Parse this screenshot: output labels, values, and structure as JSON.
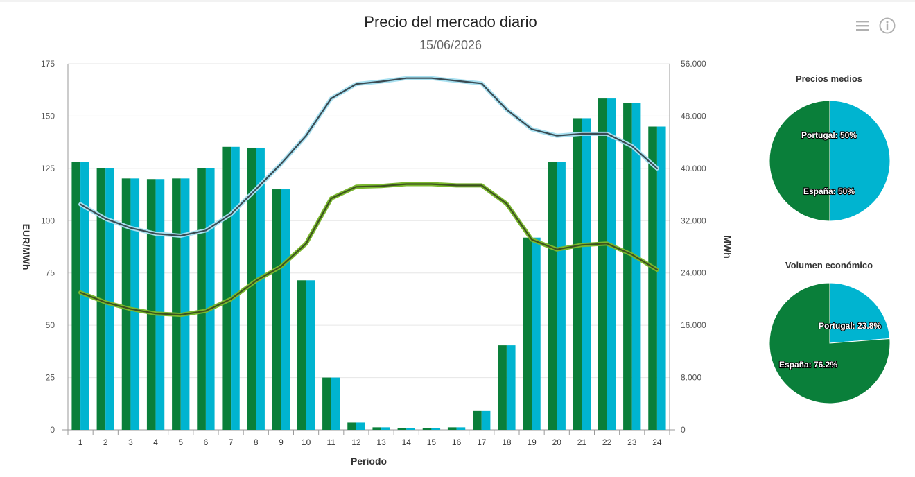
{
  "title": "Precio del mercado diario",
  "subtitle": "15/06/2026",
  "toolbar": {
    "menu_icon": "hamburger-menu-icon",
    "info_icon": "info-icon"
  },
  "colors": {
    "espana": "#0a7f3a",
    "portugal": "#00b4d0",
    "line_light": "#a8e0f0",
    "line_dark": "#3a4a52",
    "line_green": "#7ab82e",
    "line_green_dark": "#3d5220",
    "grid": "#e6e6e6"
  },
  "chart_data": [
    {
      "type": "bar",
      "categories": [
        "1",
        "2",
        "3",
        "4",
        "5",
        "6",
        "7",
        "8",
        "9",
        "10",
        "11",
        "12",
        "13",
        "14",
        "15",
        "16",
        "17",
        "18",
        "19",
        "20",
        "21",
        "22",
        "23",
        "24"
      ],
      "series": [
        {
          "name": "España",
          "axis": "left",
          "values": [
            128,
            125,
            120.2,
            119.9,
            120.2,
            125,
            135.3,
            134.9,
            115,
            71.5,
            25,
            3.5,
            1.2,
            0.8,
            0.8,
            1.2,
            9,
            40.4,
            91.9,
            128,
            149,
            158.4,
            156.2,
            145
          ]
        },
        {
          "name": "Portugal",
          "axis": "left",
          "values": [
            128,
            125,
            120.2,
            119.9,
            120.2,
            125,
            135.3,
            134.9,
            115,
            71.5,
            25,
            3.5,
            1.2,
            0.8,
            0.8,
            1.2,
            9,
            40.4,
            91.9,
            128,
            149,
            158.4,
            156.2,
            145
          ]
        }
      ],
      "lines": [
        {
          "axis": "right",
          "values": [
            34500,
            32300,
            30900,
            30000,
            29700,
            30500,
            33000,
            36800,
            40700,
            45000,
            50700,
            52900,
            53300,
            53800,
            53800,
            53400,
            53000,
            49000,
            46000,
            45000,
            45300,
            45300,
            43400,
            40000
          ]
        },
        {
          "axis": "right",
          "values": [
            21000,
            19500,
            18500,
            17800,
            17600,
            18200,
            20000,
            22800,
            25000,
            28500,
            35400,
            37200,
            37300,
            37600,
            37600,
            37400,
            37400,
            34600,
            29100,
            27600,
            28300,
            28500,
            26800,
            24500
          ]
        }
      ],
      "xlabel": "Periodo",
      "ylabel": "EUR/MWh",
      "y2label": "MWh",
      "ylim": [
        0,
        175
      ],
      "y2lim": [
        0,
        56000
      ],
      "yticks": [
        "0",
        "25",
        "50",
        "75",
        "100",
        "125",
        "150",
        "175"
      ],
      "y2ticks": [
        "0",
        "8.000",
        "16.000",
        "24.000",
        "32.000",
        "40.000",
        "48.000",
        "56.000"
      ],
      "grid": true
    },
    {
      "type": "pie",
      "title": "Precios medios",
      "slices": [
        {
          "label": "Portugal: 50%",
          "value": 50,
          "color": "#00b4d0"
        },
        {
          "label": "España: 50%",
          "value": 50,
          "color": "#0a7f3a"
        }
      ]
    },
    {
      "type": "pie",
      "title": "Volumen económico",
      "slices": [
        {
          "label": "Portugal: 23.8%",
          "value": 23.8,
          "color": "#00b4d0"
        },
        {
          "label": "España: 76.2%",
          "value": 76.2,
          "color": "#0a7f3a"
        }
      ]
    }
  ]
}
